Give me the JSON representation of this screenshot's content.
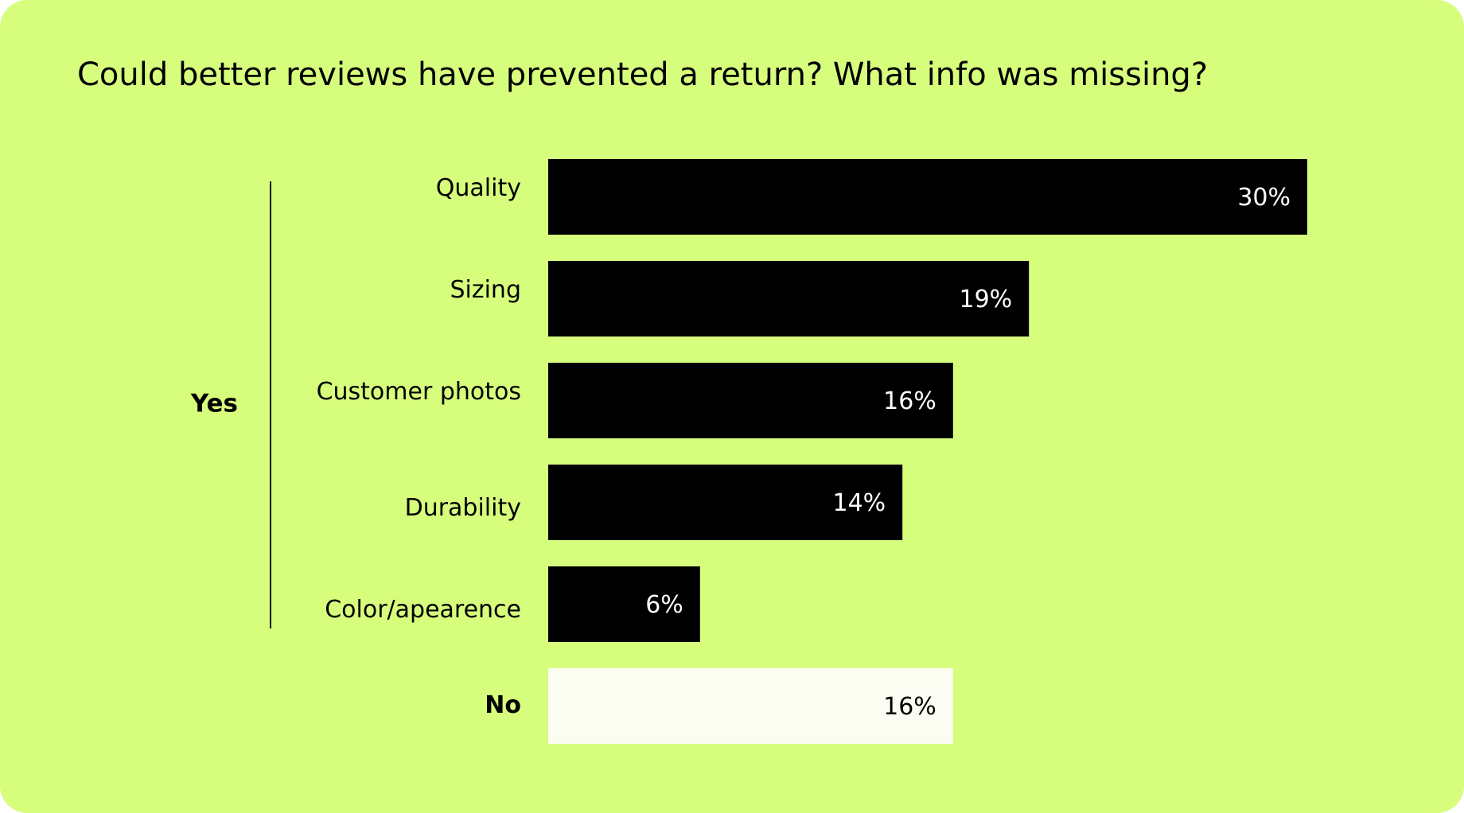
{
  "chart_data": {
    "type": "bar",
    "orientation": "horizontal",
    "title": "Could better reviews have prevented a return? What info was missing?",
    "group_label": "Yes",
    "categories": [
      "Quality",
      "Sizing",
      "Customer photos",
      "Durability",
      "Color/apearence",
      "No"
    ],
    "values": [
      30,
      19,
      16,
      14,
      6,
      16
    ],
    "value_labels": [
      "30%",
      "19%",
      "16%",
      "14%",
      "6%",
      "16%"
    ],
    "colors": [
      "#000000",
      "#000000",
      "#000000",
      "#000000",
      "#000000",
      "#fbfdf2"
    ]
  }
}
